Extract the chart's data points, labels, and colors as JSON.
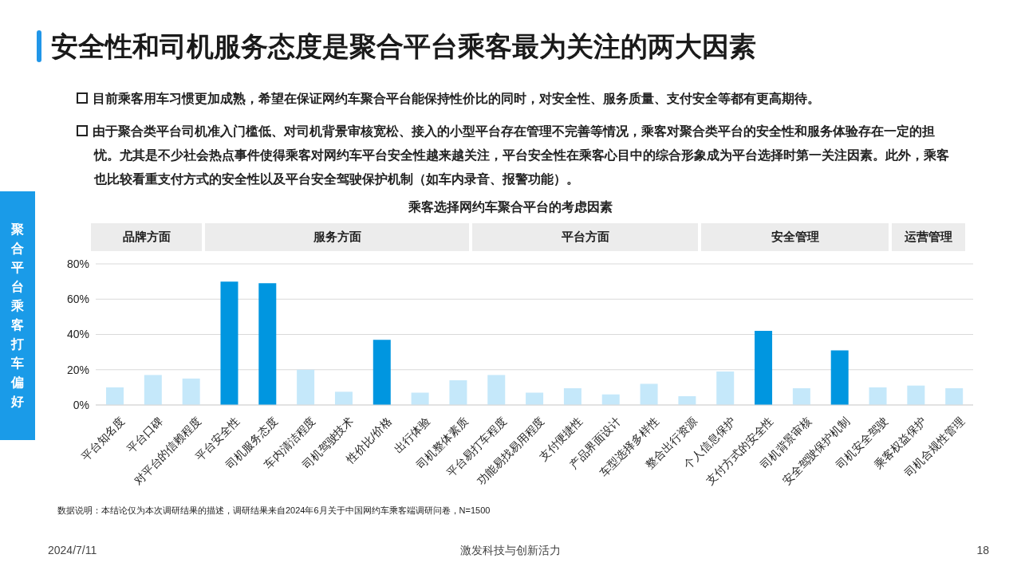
{
  "chart_data": {
    "type": "bar",
    "title": "安全性和司机服务态度是聚合平台乘客最为关注的两大因素",
    "subtitle": "乘客选择网约车聚合平台的考虑因素",
    "categories": [
      "平台知名度",
      "平台口碑",
      "对平台的信赖程度",
      "平台安全性",
      "司机服务态度",
      "车内清洁程度",
      "司机驾驶技术",
      "性价比/价格",
      "出行体验",
      "司机整体素质",
      "平台易打车程度",
      "功能易找易用程度",
      "支付便捷性",
      "产品界面设计",
      "车型选择多样性",
      "整合出行资源",
      "个人信息保护",
      "支付方式的安全性",
      "司机背景审核",
      "安全驾驶保护机制",
      "司机安全驾驶",
      "乘客权益保护",
      "司机合规性管理"
    ],
    "values": [
      10,
      17,
      15,
      70,
      69,
      20,
      7.5,
      37,
      7,
      14,
      17,
      7,
      9.5,
      6,
      12,
      5,
      19,
      42,
      9.5,
      31,
      10,
      11,
      9.5
    ],
    "colors": [
      "#c5e8fa",
      "#c5e8fa",
      "#c5e8fa",
      "#0096e0",
      "#0096e0",
      "#c5e8fa",
      "#c5e8fa",
      "#0096e0",
      "#c5e8fa",
      "#c5e8fa",
      "#c5e8fa",
      "#c5e8fa",
      "#c5e8fa",
      "#c5e8fa",
      "#c5e8fa",
      "#c5e8fa",
      "#c5e8fa",
      "#0096e0",
      "#c5e8fa",
      "#0096e0",
      "#c5e8fa",
      "#c5e8fa",
      "#c5e8fa"
    ],
    "ylim": [
      0,
      80
    ],
    "yticks": [
      {
        "value": 0,
        "label": "0%"
      },
      {
        "value": 20,
        "label": "20%"
      },
      {
        "value": 40,
        "label": "40%"
      },
      {
        "value": 60,
        "label": "60%"
      },
      {
        "value": 80,
        "label": "80%"
      }
    ],
    "grid": "y",
    "annotations": [
      "目前乘客用车习惯更加成熟，希望在保证网约车聚合平台能保持性价比的同时，对安全性、服务质量、支付安全等都有更高期待。",
      "由于聚合类平台司机准入门槛低、对司机背景审核宽松、接入的小型平台存在管理不完善等情况，乘客对聚合类平台的安全性和服务体验存在一定的担忧。尤其是不少社会热点事件使得乘客对网约车平台安全性越来越关注，平台安全性在乘客心目中的综合形象成为平台选择时第一关注因素。此外，乘客也比较看重支付方式的安全性以及平台安全驾驶保护机制（如车内录音、报警功能）。",
      "聚合平台乘客打车偏好",
      "品牌方面",
      "服务方面",
      "平台方面",
      "安全管理",
      "运营管理",
      "数据说明：本结论仅为本次调研结果的描述，调研结果来自2024年6月关于中国网约车乘客端调研问卷，N=1500",
      "2024/7/11",
      "激发科技与创新活力",
      "18"
    ]
  }
}
